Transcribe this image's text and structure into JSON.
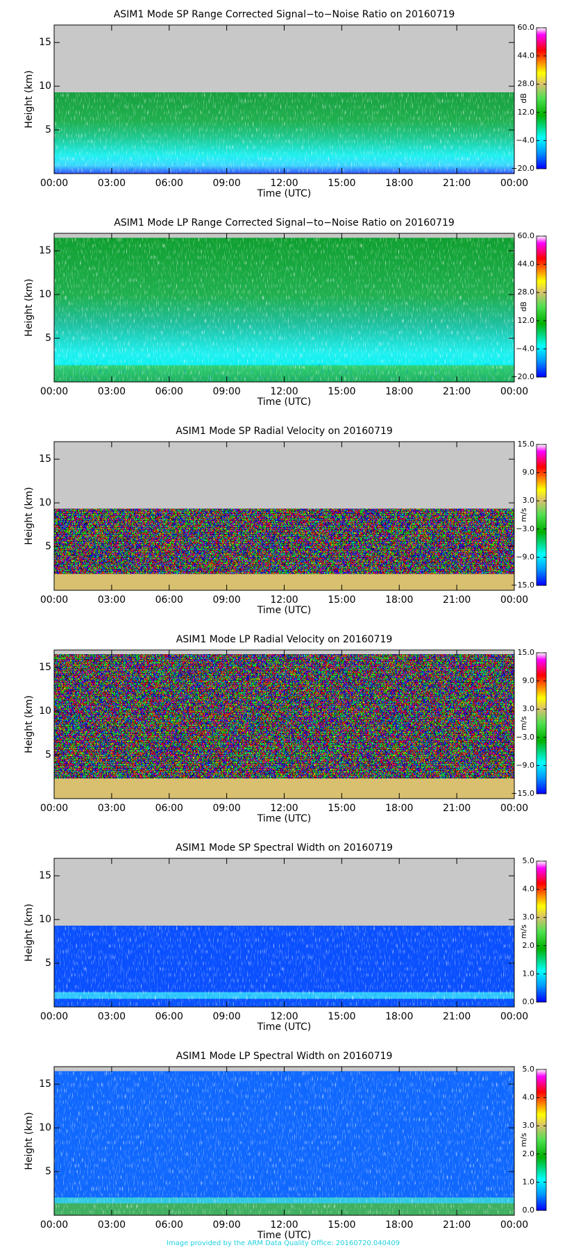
{
  "chart_data": [
    {
      "type": "heatmap",
      "title": "ASIM1 Mode SP Range Corrected Signal−to−Noise Ratio on 20160719",
      "x_label": "Time (UTC)",
      "y_label": "Height (km)",
      "xlim": [
        0,
        24
      ],
      "xticks": [
        {
          "value": 0,
          "label": "00:00"
        },
        {
          "value": 3,
          "label": "03:00"
        },
        {
          "value": 6,
          "label": "06:00"
        },
        {
          "value": 9,
          "label": "09:00"
        },
        {
          "value": 12,
          "label": "12:00"
        },
        {
          "value": 15,
          "label": "15:00"
        },
        {
          "value": 18,
          "label": "18:00"
        },
        {
          "value": 21,
          "label": "21:00"
        },
        {
          "value": 24,
          "label": "00:00"
        }
      ],
      "ylim": [
        0,
        17
      ],
      "yticks": [
        5,
        10,
        15
      ],
      "colorbar": {
        "label": "dB",
        "lim": [
          -20,
          60
        ],
        "ticks": [
          {
            "value": 60,
            "label": "60.0"
          },
          {
            "value": 44,
            "label": "44.0"
          },
          {
            "value": 28,
            "label": "28.0"
          },
          {
            "value": 12,
            "label": "12.0"
          },
          {
            "value": -4,
            "label": "−4.0"
          },
          {
            "value": -20,
            "label": "−20.0"
          }
        ]
      }
    },
    {
      "type": "heatmap",
      "title": "ASIM1 Mode LP Range Corrected Signal−to−Noise Ratio on 20160719",
      "x_label": "Time (UTC)",
      "y_label": "Height (km)",
      "xlim": [
        0,
        24
      ],
      "xticks": [
        {
          "value": 0,
          "label": "00:00"
        },
        {
          "value": 3,
          "label": "03:00"
        },
        {
          "value": 6,
          "label": "06:00"
        },
        {
          "value": 9,
          "label": "09:00"
        },
        {
          "value": 12,
          "label": "12:00"
        },
        {
          "value": 15,
          "label": "15:00"
        },
        {
          "value": 18,
          "label": "18:00"
        },
        {
          "value": 21,
          "label": "21:00"
        },
        {
          "value": 24,
          "label": "00:00"
        }
      ],
      "ylim": [
        0,
        17
      ],
      "yticks": [
        5,
        10,
        15
      ],
      "colorbar": {
        "label": "dB",
        "lim": [
          -20,
          60
        ],
        "ticks": [
          {
            "value": 60,
            "label": "60.0"
          },
          {
            "value": 44,
            "label": "44.0"
          },
          {
            "value": 28,
            "label": "28.0"
          },
          {
            "value": 12,
            "label": "12.0"
          },
          {
            "value": -4,
            "label": "−4.0"
          },
          {
            "value": -20,
            "label": "−20.0"
          }
        ]
      }
    },
    {
      "type": "heatmap",
      "title": "ASIM1 Mode SP Radial Velocity  on 20160719",
      "x_label": "Time (UTC)",
      "y_label": "Height (km)",
      "xlim": [
        0,
        24
      ],
      "xticks": [
        {
          "value": 0,
          "label": "00:00"
        },
        {
          "value": 3,
          "label": "03:00"
        },
        {
          "value": 6,
          "label": "06:00"
        },
        {
          "value": 9,
          "label": "09:00"
        },
        {
          "value": 12,
          "label": "12:00"
        },
        {
          "value": 15,
          "label": "15:00"
        },
        {
          "value": 18,
          "label": "18:00"
        },
        {
          "value": 21,
          "label": "21:00"
        },
        {
          "value": 24,
          "label": "00:00"
        }
      ],
      "ylim": [
        0,
        17
      ],
      "yticks": [
        5,
        10,
        15
      ],
      "colorbar": {
        "label": "m/s",
        "lim": [
          -15,
          15
        ],
        "ticks": [
          {
            "value": 15,
            "label": "15.0"
          },
          {
            "value": 9,
            "label": "9.0"
          },
          {
            "value": 3,
            "label": "3.0"
          },
          {
            "value": -3,
            "label": "−3.0"
          },
          {
            "value": -9,
            "label": "−9.0"
          },
          {
            "value": -15,
            "label": "−15.0"
          }
        ]
      }
    },
    {
      "type": "heatmap",
      "title": "ASIM1 Mode LP Radial Velocity  on 20160719",
      "x_label": "Time (UTC)",
      "y_label": "Height (km)",
      "xlim": [
        0,
        24
      ],
      "xticks": [
        {
          "value": 0,
          "label": "00:00"
        },
        {
          "value": 3,
          "label": "03:00"
        },
        {
          "value": 6,
          "label": "06:00"
        },
        {
          "value": 9,
          "label": "09:00"
        },
        {
          "value": 12,
          "label": "12:00"
        },
        {
          "value": 15,
          "label": "15:00"
        },
        {
          "value": 18,
          "label": "18:00"
        },
        {
          "value": 21,
          "label": "21:00"
        },
        {
          "value": 24,
          "label": "00:00"
        }
      ],
      "ylim": [
        0,
        17
      ],
      "yticks": [
        5,
        10,
        15
      ],
      "colorbar": {
        "label": "m/s",
        "lim": [
          -15,
          15
        ],
        "ticks": [
          {
            "value": 15,
            "label": "15.0"
          },
          {
            "value": 9,
            "label": "9.0"
          },
          {
            "value": 3,
            "label": "3.0"
          },
          {
            "value": -3,
            "label": "−3.0"
          },
          {
            "value": -9,
            "label": "−9.0"
          },
          {
            "value": -15,
            "label": "−15.0"
          }
        ]
      }
    },
    {
      "type": "heatmap",
      "title": "ASIM1 Mode SP Spectral Width  on 20160719",
      "x_label": "Time (UTC)",
      "y_label": "Height (km)",
      "xlim": [
        0,
        24
      ],
      "xticks": [
        {
          "value": 0,
          "label": "00:00"
        },
        {
          "value": 3,
          "label": "03:00"
        },
        {
          "value": 6,
          "label": "06:00"
        },
        {
          "value": 9,
          "label": "09:00"
        },
        {
          "value": 12,
          "label": "12:00"
        },
        {
          "value": 15,
          "label": "15:00"
        },
        {
          "value": 18,
          "label": "18:00"
        },
        {
          "value": 21,
          "label": "21:00"
        },
        {
          "value": 24,
          "label": "00:00"
        }
      ],
      "ylim": [
        0,
        17
      ],
      "yticks": [
        5,
        10,
        15
      ],
      "colorbar": {
        "label": "m/s",
        "lim": [
          0,
          5
        ],
        "ticks": [
          {
            "value": 5,
            "label": "5.0"
          },
          {
            "value": 4,
            "label": "4.0"
          },
          {
            "value": 3,
            "label": "3.0"
          },
          {
            "value": 2,
            "label": "2.0"
          },
          {
            "value": 1,
            "label": "1.0"
          },
          {
            "value": 0,
            "label": "0.0"
          }
        ]
      }
    },
    {
      "type": "heatmap",
      "title": "ASIM1 Mode LP Spectral Width  on 20160719",
      "x_label": "Time (UTC)",
      "y_label": "Height (km)",
      "xlim": [
        0,
        24
      ],
      "xticks": [
        {
          "value": 0,
          "label": "00:00"
        },
        {
          "value": 3,
          "label": "03:00"
        },
        {
          "value": 6,
          "label": "06:00"
        },
        {
          "value": 9,
          "label": "09:00"
        },
        {
          "value": 12,
          "label": "12:00"
        },
        {
          "value": 15,
          "label": "15:00"
        },
        {
          "value": 18,
          "label": "18:00"
        },
        {
          "value": 21,
          "label": "21:00"
        },
        {
          "value": 24,
          "label": "00:00"
        }
      ],
      "ylim": [
        0,
        17
      ],
      "yticks": [
        5,
        10,
        15
      ],
      "colorbar": {
        "label": "m/s",
        "lim": [
          0,
          5
        ],
        "ticks": [
          {
            "value": 5,
            "label": "5.0"
          },
          {
            "value": 4,
            "label": "4.0"
          },
          {
            "value": 3,
            "label": "3.0"
          },
          {
            "value": 2,
            "label": "2.0"
          },
          {
            "value": 1,
            "label": "1.0"
          },
          {
            "value": 0,
            "label": "0.0"
          }
        ]
      }
    }
  ],
  "footer": "Image provided by the ARM Data Quality Office: 20160720.040409"
}
